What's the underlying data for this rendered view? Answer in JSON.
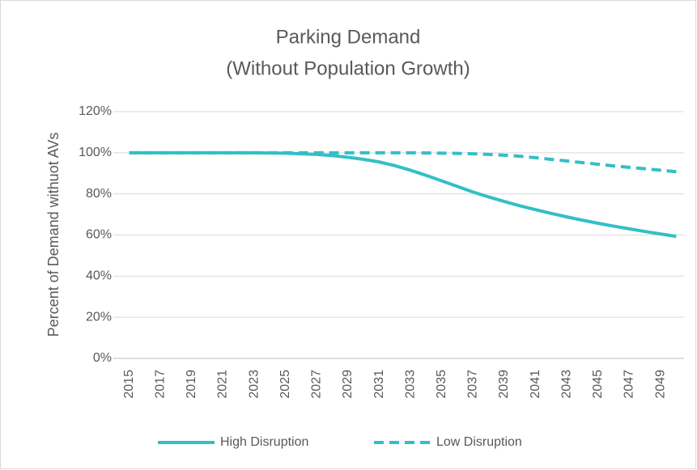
{
  "chart_data": {
    "type": "line",
    "title": "Parking Demand",
    "subtitle": "(Without Population Growth)",
    "y_label": "Percent of Demand withuot AVs",
    "categories": [
      "2015",
      null,
      "2017",
      null,
      "2019",
      null,
      "2021",
      null,
      "2023",
      null,
      "2025",
      null,
      "2027",
      null,
      "2029",
      null,
      "2031",
      null,
      "2033",
      null,
      "2035",
      null,
      "2037",
      null,
      "2039",
      null,
      "2041",
      null,
      "2043",
      null,
      "2045",
      null,
      "2047",
      null,
      "2049",
      null
    ],
    "series": [
      {
        "name": "High Disruption",
        "color": "#33bfc6",
        "dash": false,
        "values": [
          100,
          100,
          100,
          100,
          100,
          100,
          100,
          100,
          100,
          99.9,
          99.8,
          99.5,
          99.2,
          98.6,
          97.8,
          96.8,
          95.5,
          93.7,
          91.5,
          89,
          86.3,
          83.6,
          80.9,
          78.5,
          76.3,
          74.2,
          72.3,
          70.5,
          68.8,
          67.2,
          65.7,
          64.3,
          63,
          61.7,
          60.5,
          59.3
        ]
      },
      {
        "name": "Low Disruption",
        "color": "#33bfc6",
        "dash": true,
        "values": [
          100,
          100,
          100,
          100,
          100,
          100,
          100,
          100,
          100,
          100,
          100,
          100,
          100,
          100,
          100,
          100,
          100,
          100,
          100,
          99.9,
          99.8,
          99.7,
          99.5,
          99.2,
          98.8,
          98.3,
          97.6,
          96.8,
          96,
          95.2,
          94.4,
          93.6,
          92.9,
          92.2,
          91.5,
          90.8
        ]
      }
    ],
    "ylim": [
      0,
      120
    ],
    "yticks": [
      {
        "value": 0,
        "label": "0%"
      },
      {
        "value": 20,
        "label": "20%"
      },
      {
        "value": 40,
        "label": "40%"
      },
      {
        "value": 60,
        "label": "60%"
      },
      {
        "value": 80,
        "label": "80%"
      },
      {
        "value": 100,
        "label": "100%"
      },
      {
        "value": 120,
        "label": "120%"
      }
    ],
    "grid": true,
    "legend": "bottom"
  }
}
